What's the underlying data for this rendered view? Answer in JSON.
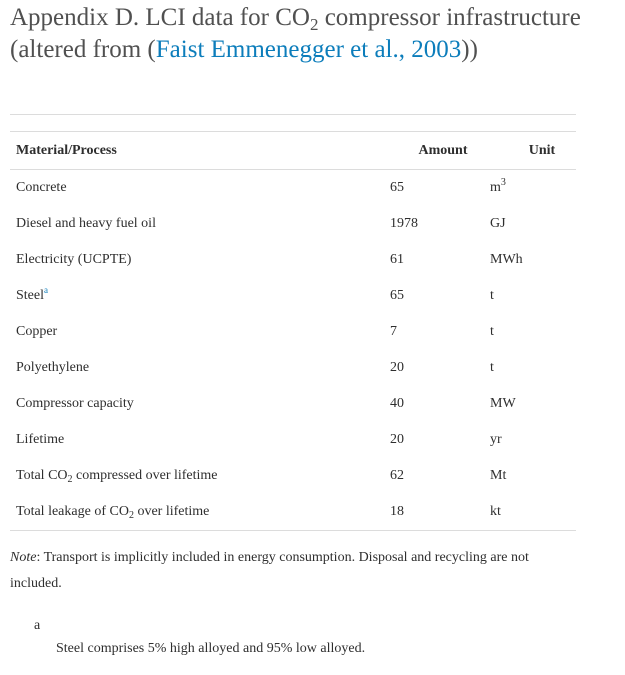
{
  "title": {
    "part1": "Appendix D. LCI data for CO",
    "sub": "2",
    "part2": " compressor infrastructure (altered from (",
    "link": "Faist Emmenegger et al., 2003",
    "part3": "))"
  },
  "table": {
    "headers": [
      "Material/Process",
      "Amount",
      "Unit"
    ],
    "rows": [
      {
        "name": "Concrete",
        "amount": "65",
        "unit": "m",
        "unit_sup": "3"
      },
      {
        "name": "Diesel and heavy fuel oil",
        "amount": "1978",
        "unit": "GJ"
      },
      {
        "name": "Electricity (UCPTE)",
        "amount": "61",
        "unit": "MWh"
      },
      {
        "name": "Steel",
        "name_sup": "a",
        "amount": "65",
        "unit": "t"
      },
      {
        "name": "Copper",
        "amount": "7",
        "unit": "t"
      },
      {
        "name": "Polyethylene",
        "amount": "20",
        "unit": "t"
      },
      {
        "name": "Compressor capacity",
        "amount": "40",
        "unit": "MW"
      },
      {
        "name": "Lifetime",
        "amount": "20",
        "unit": "yr"
      },
      {
        "name": "Total CO",
        "name_sub": "2",
        "name_after": " compressed over lifetime",
        "amount": "62",
        "unit": "Mt"
      },
      {
        "name": "Total leakage of CO",
        "name_sub": "2",
        "name_after": " over lifetime",
        "amount": "18",
        "unit": "kt"
      }
    ]
  },
  "note": {
    "label": "Note",
    "text": ": Transport is implicitly included in energy consumption. Disposal and recycling are not included."
  },
  "footnote": {
    "label": "a",
    "text": "Steel comprises 5% high alloyed and 95% low alloyed."
  }
}
